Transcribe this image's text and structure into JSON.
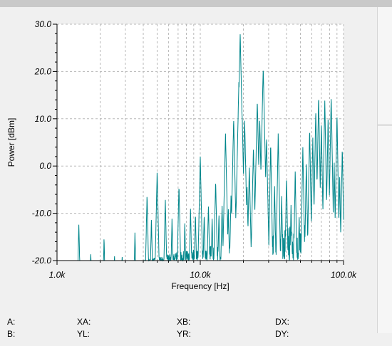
{
  "chart_data": {
    "type": "line",
    "xscale": "log",
    "xlim": [
      1000,
      100000
    ],
    "ylim": [
      -20,
      30
    ],
    "xlabel": "Frequency [Hz]",
    "ylabel": "Power [dBm]",
    "grid": true,
    "line_color": "#00868b",
    "y_ticks": [
      {
        "value": 30,
        "label": "30.0"
      },
      {
        "value": 20,
        "label": "20.0"
      },
      {
        "value": 10,
        "label": "10.0"
      },
      {
        "value": 0,
        "label": "0.0"
      },
      {
        "value": -10,
        "label": "-10.0"
      },
      {
        "value": -20,
        "label": "-20.0"
      }
    ],
    "x_ticks": [
      {
        "value": 1000,
        "label": "1.0k"
      },
      {
        "value": 10000,
        "label": "10.0k"
      },
      {
        "value": 100000,
        "label": "100.0k"
      }
    ],
    "peaks": [
      {
        "f": 1420,
        "db": -12
      },
      {
        "f": 1720,
        "db": -18
      },
      {
        "f": 2130,
        "db": -15
      },
      {
        "f": 2520,
        "db": -19
      },
      {
        "f": 2850,
        "db": -19
      },
      {
        "f": 3500,
        "db": -14
      },
      {
        "f": 4250,
        "db": -6
      },
      {
        "f": 4560,
        "db": -11
      },
      {
        "f": 5000,
        "db": -1
      },
      {
        "f": 5700,
        "db": -7
      },
      {
        "f": 6350,
        "db": -11
      },
      {
        "f": 7100,
        "db": -4
      },
      {
        "f": 7800,
        "db": -12
      },
      {
        "f": 8550,
        "db": -9
      },
      {
        "f": 9250,
        "db": -10
      },
      {
        "f": 10000,
        "db": 2
      },
      {
        "f": 10650,
        "db": -10
      },
      {
        "f": 11400,
        "db": -8
      },
      {
        "f": 12100,
        "db": -11
      },
      {
        "f": 12800,
        "db": -3
      },
      {
        "f": 13500,
        "db": -10
      },
      {
        "f": 14200,
        "db": -8
      },
      {
        "f": 15000,
        "db": 7
      },
      {
        "f": 15700,
        "db": -9
      },
      {
        "f": 16400,
        "db": -6
      },
      {
        "f": 17100,
        "db": 10
      },
      {
        "f": 17800,
        "db": -8
      },
      {
        "f": 18600,
        "db": 18
      },
      {
        "f": 19000,
        "db": 28
      },
      {
        "f": 19600,
        "db": 11
      },
      {
        "f": 20400,
        "db": 10
      },
      {
        "f": 21200,
        "db": -4
      },
      {
        "f": 22000,
        "db": 0
      },
      {
        "f": 23500,
        "db": 4
      },
      {
        "f": 25000,
        "db": 14
      },
      {
        "f": 26000,
        "db": 10
      },
      {
        "f": 27500,
        "db": 21
      },
      {
        "f": 29000,
        "db": 6
      },
      {
        "f": 31000,
        "db": 5
      },
      {
        "f": 33000,
        "db": -4
      },
      {
        "f": 35000,
        "db": 7
      },
      {
        "f": 37000,
        "db": -6
      },
      {
        "f": 40000,
        "db": -2
      },
      {
        "f": 43000,
        "db": -8
      },
      {
        "f": 46000,
        "db": -1
      },
      {
        "f": 49000,
        "db": -10
      },
      {
        "f": 52000,
        "db": 4
      },
      {
        "f": 55000,
        "db": 1
      },
      {
        "f": 58000,
        "db": 8
      },
      {
        "f": 61000,
        "db": 6
      },
      {
        "f": 64000,
        "db": 12
      },
      {
        "f": 67000,
        "db": 15
      },
      {
        "f": 70000,
        "db": 9
      },
      {
        "f": 74000,
        "db": 14
      },
      {
        "f": 78000,
        "db": 10
      },
      {
        "f": 82000,
        "db": 15
      },
      {
        "f": 86000,
        "db": 1
      },
      {
        "f": 90000,
        "db": 11
      },
      {
        "f": 94000,
        "db": -2
      },
      {
        "f": 98000,
        "db": 4
      }
    ]
  },
  "readout": {
    "a_label": "A:",
    "xa_label": "XA:",
    "xb_label": "XB:",
    "dx_label": "DX:",
    "b_label": "B:",
    "yl_label": "YL:",
    "yr_label": "YR:",
    "dy_label": "DY:"
  }
}
